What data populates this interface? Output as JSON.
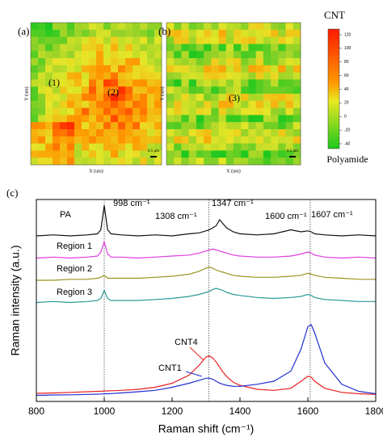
{
  "maps": {
    "panels": [
      {
        "label": "(a)",
        "regions": [
          "(1)",
          "(2)"
        ],
        "y_axis_label": "Y (um)",
        "x_axis_label": "X (um)",
        "scale_bar": "0.5 μm"
      },
      {
        "label": "(b)",
        "regions": [
          "(3)"
        ],
        "y_axis_label": "Y (um)",
        "x_axis_label": "X (um)",
        "scale_bar": "0.5 μm"
      }
    ],
    "colorbar": {
      "top_label": "CNT",
      "bottom_label": "Polyamide",
      "ticks": [
        120,
        100,
        80,
        60,
        40,
        20,
        0,
        -20,
        -40
      ]
    }
  },
  "chart_data": {
    "type": "line",
    "panel_label": "(c)",
    "x_label": "Raman shift (cm⁻¹)",
    "y_label": "Raman intensity (a.u.)",
    "xlim": [
      800,
      1800
    ],
    "xticks": [
      800,
      1000,
      1200,
      1400,
      1600,
      1800
    ],
    "ylim": [
      0,
      10
    ],
    "reference_lines": [
      1000,
      1308,
      1607
    ],
    "annotations": [
      "998 cm⁻¹",
      "1308 cm⁻¹",
      "1347 cm⁻¹",
      "1600 cm⁻¹",
      "1607 cm⁻¹"
    ],
    "x": [
      800,
      850,
      900,
      950,
      980,
      990,
      1000,
      1010,
      1020,
      1050,
      1100,
      1150,
      1200,
      1250,
      1280,
      1300,
      1310,
      1320,
      1330,
      1340,
      1350,
      1360,
      1380,
      1400,
      1450,
      1500,
      1550,
      1580,
      1600,
      1610,
      1620,
      1650,
      1700,
      1750,
      1800
    ],
    "series": [
      {
        "name": "PA",
        "color": "#111111",
        "values": [
          8.2,
          8.25,
          8.2,
          8.25,
          8.3,
          8.5,
          9.7,
          8.5,
          8.3,
          8.25,
          8.2,
          8.25,
          8.2,
          8.3,
          8.35,
          8.45,
          8.5,
          8.6,
          8.7,
          9.0,
          8.8,
          8.6,
          8.4,
          8.3,
          8.25,
          8.3,
          8.5,
          8.4,
          8.45,
          8.4,
          8.3,
          8.25,
          8.2,
          8.25,
          8.2
        ]
      },
      {
        "name": "Region 1",
        "color": "#e03ce0",
        "values": [
          7.1,
          7.15,
          7.1,
          7.15,
          7.2,
          7.4,
          7.9,
          7.3,
          7.15,
          7.15,
          7.1,
          7.15,
          7.2,
          7.25,
          7.35,
          7.45,
          7.5,
          7.55,
          7.5,
          7.45,
          7.4,
          7.35,
          7.25,
          7.2,
          7.15,
          7.15,
          7.2,
          7.3,
          7.4,
          7.35,
          7.25,
          7.15,
          7.1,
          7.15,
          7.1
        ]
      },
      {
        "name": "Region 2",
        "color": "#9a9420",
        "values": [
          6.0,
          6.0,
          6.05,
          6.05,
          6.1,
          6.15,
          6.25,
          6.1,
          6.1,
          6.1,
          6.1,
          6.15,
          6.2,
          6.3,
          6.45,
          6.6,
          6.65,
          6.6,
          6.5,
          6.45,
          6.4,
          6.35,
          6.25,
          6.2,
          6.15,
          6.15,
          6.2,
          6.25,
          6.35,
          6.3,
          6.25,
          6.15,
          6.1,
          6.05,
          6.05
        ]
      },
      {
        "name": "Region 3",
        "color": "#2a9898",
        "values": [
          4.9,
          4.95,
          4.9,
          4.95,
          5.0,
          5.1,
          5.5,
          5.1,
          5.0,
          5.0,
          5.0,
          5.05,
          5.1,
          5.2,
          5.3,
          5.4,
          5.45,
          5.55,
          5.6,
          5.55,
          5.5,
          5.4,
          5.3,
          5.25,
          5.15,
          5.1,
          5.15,
          5.2,
          5.3,
          5.25,
          5.15,
          5.05,
          5.0,
          4.95,
          4.95
        ]
      },
      {
        "name": "CNT4",
        "color": "#e82020",
        "values": [
          0.4,
          0.42,
          0.45,
          0.48,
          0.5,
          0.5,
          0.52,
          0.52,
          0.53,
          0.55,
          0.6,
          0.7,
          0.9,
          1.3,
          1.8,
          2.2,
          2.25,
          2.15,
          1.95,
          1.7,
          1.45,
          1.25,
          0.95,
          0.8,
          0.6,
          0.55,
          0.65,
          1.0,
          1.25,
          1.2,
          1.0,
          0.65,
          0.45,
          0.38,
          0.35
        ]
      },
      {
        "name": "CNT1",
        "color": "#2030d0",
        "values": [
          0.3,
          0.32,
          0.33,
          0.35,
          0.36,
          0.37,
          0.38,
          0.38,
          0.39,
          0.42,
          0.48,
          0.55,
          0.7,
          0.9,
          1.05,
          1.15,
          1.15,
          1.1,
          1.0,
          0.9,
          0.85,
          0.8,
          0.75,
          0.75,
          0.85,
          1.0,
          1.5,
          2.6,
          3.7,
          3.8,
          3.4,
          1.9,
          0.85,
          0.5,
          0.38
        ]
      }
    ]
  }
}
